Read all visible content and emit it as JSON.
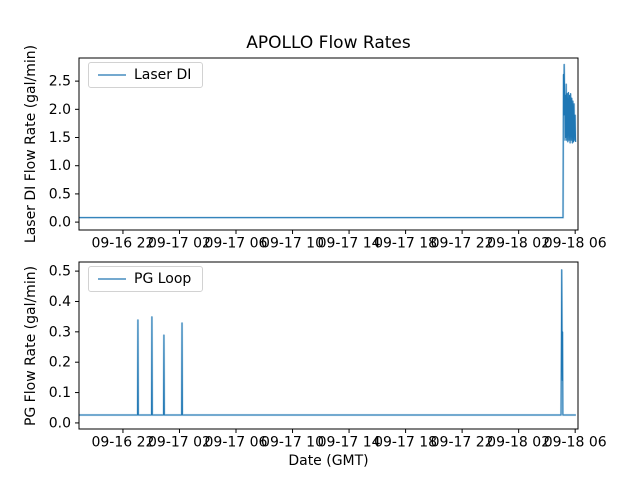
{
  "figure": {
    "title": "APOLLO Flow Rates",
    "xlabel": "Date (GMT)",
    "background_color": "#ffffff",
    "line_color": "#1f77b4",
    "line_color_light": "#74a9cf"
  },
  "chart_data": [
    {
      "type": "line",
      "subplot": "top",
      "ylabel": "Laser DI Flow Rate (gal/min)",
      "legend": {
        "label": "Laser DI",
        "position": "upper left"
      },
      "grid": false,
      "x_unit": "hours since 09-16 18:00 GMT",
      "xlim": [
        0.89,
        36.2
      ],
      "ylim": [
        -0.14,
        2.91
      ],
      "xticks": [
        4,
        8,
        12,
        16,
        20,
        24,
        28,
        32,
        36
      ],
      "xtick_labels": [
        "09-16 22",
        "09-17 02",
        "09-17 06",
        "09-17 10",
        "09-17 14",
        "09-17 18",
        "09-17 22",
        "09-18 02",
        "09-18 06"
      ],
      "yticks": [
        0.0,
        0.5,
        1.0,
        1.5,
        2.0,
        2.5
      ],
      "ytick_labels": [
        "0.0",
        "0.5",
        "1.0",
        "1.5",
        "2.0",
        "2.5"
      ],
      "series": [
        {
          "name": "Laser DI",
          "color": "#1f77b4",
          "points": [
            [
              0.89,
              0.08
            ],
            [
              35.14,
              0.08
            ],
            [
              35.17,
              2.62
            ],
            [
              35.2,
              1.9
            ],
            [
              35.22,
              2.8
            ],
            [
              35.26,
              2.2
            ],
            [
              35.28,
              1.45
            ],
            [
              35.3,
              2.25
            ],
            [
              35.33,
              1.5
            ],
            [
              35.36,
              2.45
            ],
            [
              35.4,
              1.45
            ],
            [
              35.44,
              2.28
            ],
            [
              35.48,
              1.42
            ],
            [
              35.52,
              2.3
            ],
            [
              35.56,
              1.45
            ],
            [
              35.6,
              2.25
            ],
            [
              35.64,
              1.4
            ],
            [
              35.68,
              2.28
            ],
            [
              35.72,
              1.45
            ],
            [
              35.76,
              2.2
            ],
            [
              35.8,
              1.4
            ],
            [
              35.84,
              2.15
            ],
            [
              35.88,
              1.42
            ],
            [
              35.92,
              2.1
            ],
            [
              35.96,
              1.45
            ],
            [
              36.0,
              1.9
            ],
            [
              36.03,
              1.42
            ]
          ]
        }
      ]
    },
    {
      "type": "line",
      "subplot": "bottom",
      "ylabel": "PG Flow Rate (gal/min)",
      "legend": {
        "label": "PG Loop",
        "position": "upper left"
      },
      "grid": false,
      "x_unit": "hours since 09-16 18:00 GMT",
      "xlim": [
        0.89,
        36.2
      ],
      "ylim": [
        -0.02,
        0.53
      ],
      "xticks": [
        4,
        8,
        12,
        16,
        20,
        24,
        28,
        32,
        36
      ],
      "xtick_labels": [
        "09-16 22",
        "09-17 02",
        "09-17 06",
        "09-17 10",
        "09-17 14",
        "09-17 18",
        "09-17 22",
        "09-18 02",
        "09-18 06"
      ],
      "yticks": [
        0.0,
        0.1,
        0.2,
        0.3,
        0.4,
        0.5
      ],
      "ytick_labels": [
        "0.0",
        "0.1",
        "0.2",
        "0.3",
        "0.4",
        "0.5"
      ],
      "series": [
        {
          "name": "PG Loop",
          "color": "#1f77b4",
          "points": [
            [
              0.89,
              0.026
            ],
            [
              5.03,
              0.026
            ],
            [
              5.06,
              0.34
            ],
            [
              5.09,
              0.026
            ],
            [
              6.02,
              0.026
            ],
            [
              6.05,
              0.35
            ],
            [
              6.08,
              0.026
            ],
            [
              6.87,
              0.026
            ],
            [
              6.9,
              0.29
            ],
            [
              6.93,
              0.026
            ],
            [
              8.15,
              0.026
            ],
            [
              8.18,
              0.33
            ],
            [
              8.21,
              0.026
            ],
            [
              35.0,
              0.026
            ],
            [
              35.05,
              0.505
            ],
            [
              35.09,
              0.14
            ],
            [
              35.11,
              0.3
            ],
            [
              35.13,
              0.026
            ],
            [
              36.05,
              0.026
            ]
          ]
        }
      ]
    }
  ]
}
